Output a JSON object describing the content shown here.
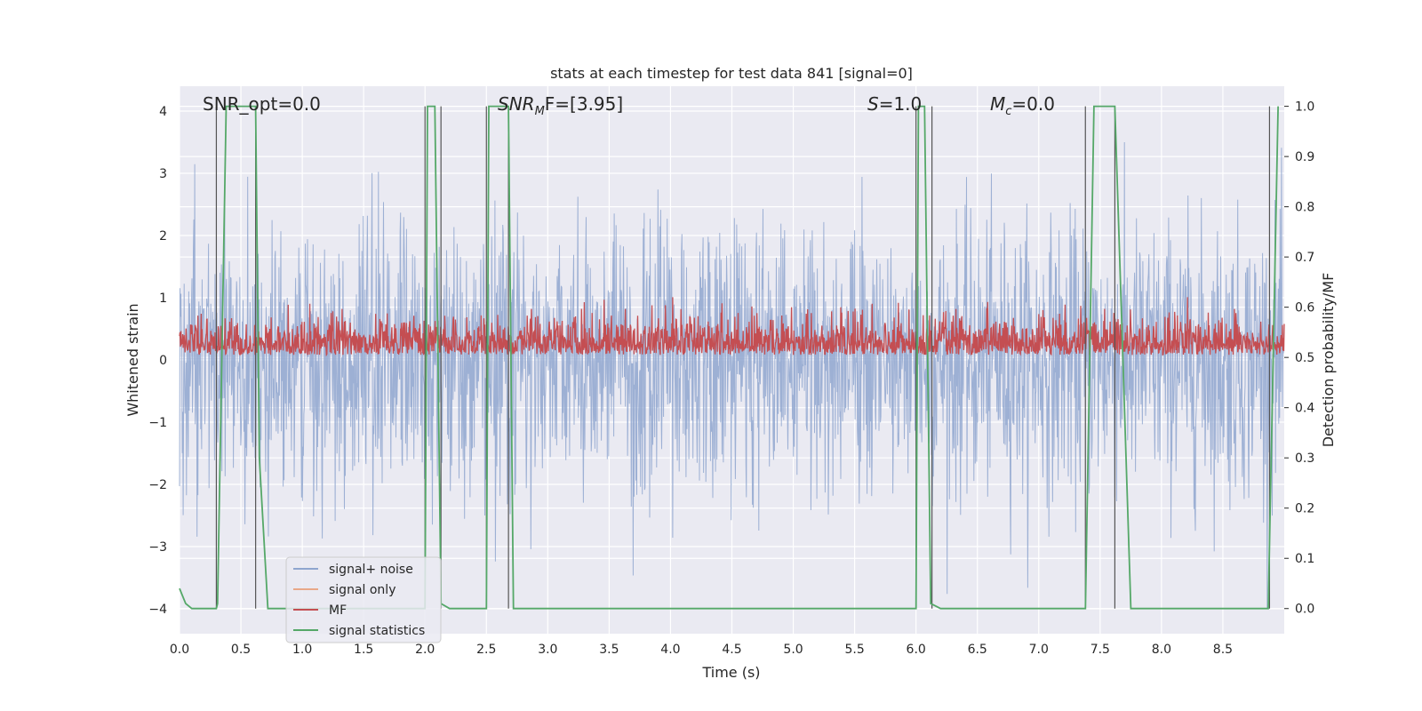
{
  "chart_data": {
    "type": "line",
    "title": "stats at each timestep for test data 841 [signal=0]",
    "xlabel": "Time (s)",
    "ylabel": "Whitened strain",
    "y2label": "Detection probability/MF",
    "xlim": [
      0,
      9.0
    ],
    "ylim": [
      -4.4,
      4.4
    ],
    "y2lim": [
      -0.05,
      1.04
    ],
    "xticks": [
      "0.0",
      "0.5",
      "1.0",
      "1.5",
      "2.0",
      "2.5",
      "3.0",
      "3.5",
      "4.0",
      "4.5",
      "5.0",
      "5.5",
      "6.0",
      "6.5",
      "7.0",
      "7.5",
      "8.0",
      "8.5"
    ],
    "yticks": [
      "4",
      "3",
      "2",
      "1",
      "0",
      "−1",
      "−2",
      "−3",
      "−4"
    ],
    "y2ticks": [
      "1.0",
      "0.9",
      "0.8",
      "0.7",
      "0.6",
      "0.5",
      "0.4",
      "0.3",
      "0.2",
      "0.1",
      "0.0"
    ],
    "grid": true,
    "legend_position": "lower-left",
    "annotations": {
      "snr_opt": "SNR_opt=0.0",
      "snr_mf_main": "SNR",
      "snr_mf_sub": "M",
      "snr_mf_tail": "F=[3.95]",
      "s_main": "S",
      "s_tail": "=1.0",
      "mc_main": "M",
      "mc_sub": "c",
      "mc_tail": "=0.0"
    },
    "series": [
      {
        "name": "signal+ noise",
        "color": "#8fa6cf",
        "description_values": {
          "min": -4.0,
          "max": 3.5,
          "typical_abs": 1.5
        }
      },
      {
        "name": "signal only",
        "color": "#e8a889",
        "values": []
      },
      {
        "name": "MF",
        "color": "#c44e52",
        "axis": "y2",
        "description_values": {
          "min": 0.5,
          "max": 0.62
        }
      },
      {
        "name": "signal statistics",
        "color": "#55a868",
        "axis": "y2",
        "x": [
          0.0,
          0.05,
          0.1,
          0.3,
          0.31,
          0.38,
          0.62,
          0.65,
          0.72,
          0.75,
          1.5,
          2.0,
          2.02,
          2.08,
          2.13,
          2.2,
          2.3,
          2.5,
          2.52,
          2.6,
          2.68,
          2.72,
          5.5,
          6.0,
          6.02,
          6.07,
          6.12,
          6.2,
          7.0,
          7.38,
          7.45,
          7.62,
          7.75,
          8.0,
          8.87,
          8.95
        ],
        "y": [
          0.04,
          0.01,
          0.0,
          0.0,
          0.01,
          1.0,
          1.0,
          0.3,
          0.0,
          0.0,
          0.0,
          0.0,
          1.0,
          1.0,
          0.01,
          0.0,
          0.0,
          0.0,
          1.0,
          1.0,
          1.0,
          0.0,
          0.0,
          0.0,
          1.0,
          1.0,
          0.01,
          0.0,
          0.0,
          0.0,
          1.0,
          1.0,
          0.0,
          0.0,
          0.0,
          1.0
        ]
      }
    ],
    "vertical_markers": [
      0.3,
      0.62,
      2.0,
      2.13,
      2.5,
      2.68,
      6.0,
      6.13,
      7.38,
      7.62,
      8.88
    ]
  }
}
